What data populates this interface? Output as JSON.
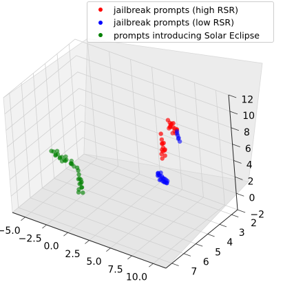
{
  "chart_data": {
    "type": "scatter",
    "projection": "3d",
    "grid": true,
    "legend_position": "top-right",
    "x_ticks": [
      "−5.0",
      "−2.5",
      "0.0",
      "2.5",
      "5.0",
      "7.5",
      "10.0"
    ],
    "y_ticks": [
      "2",
      "3",
      "4",
      "5",
      "6",
      "7"
    ],
    "z_ticks": [
      "−2",
      "0",
      "2",
      "4",
      "6",
      "8",
      "10",
      "12"
    ],
    "xlim": [
      -6.5,
      11.5
    ],
    "ylim": [
      1.5,
      7.5
    ],
    "zlim": [
      -2,
      12
    ],
    "series": [
      {
        "name": "jailbreak prompts (high RSR)",
        "color": "#ff0000",
        "points": [
          [
            8.9,
            4.6,
            11.3
          ],
          [
            9.1,
            4.7,
            11.0
          ],
          [
            9.4,
            4.8,
            11.6
          ],
          [
            9.7,
            4.9,
            11.4
          ],
          [
            10.0,
            5.0,
            11.2
          ],
          [
            10.2,
            5.1,
            11.7
          ],
          [
            9.6,
            5.0,
            11.8
          ],
          [
            9.2,
            4.9,
            11.1
          ],
          [
            9.8,
            4.7,
            10.9
          ],
          [
            10.3,
            5.0,
            11.5
          ],
          [
            8.7,
            4.5,
            10.6
          ],
          [
            9.0,
            4.8,
            11.9
          ],
          [
            10.4,
            5.2,
            11.3
          ],
          [
            9.3,
            4.6,
            11.4
          ],
          [
            9.9,
            5.1,
            11.0
          ],
          [
            7.3,
            4.3,
            8.3
          ],
          [
            7.5,
            4.4,
            8.0
          ],
          [
            7.7,
            4.5,
            7.7
          ],
          [
            7.6,
            4.3,
            7.2
          ],
          [
            7.8,
            4.6,
            7.4
          ],
          [
            7.4,
            4.2,
            6.9
          ],
          [
            7.9,
            4.7,
            8.5
          ],
          [
            7.2,
            4.1,
            7.6
          ],
          [
            7.7,
            4.4,
            6.6
          ],
          [
            7.5,
            4.5,
            6.3
          ],
          [
            8.0,
            4.8,
            7.9
          ],
          [
            7.1,
            4.2,
            8.8
          ],
          [
            7.6,
            4.6,
            7.0
          ]
        ]
      },
      {
        "name": "jailbreak prompts (low RSR)",
        "color": "#0000ff",
        "points": [
          [
            10.8,
            5.3,
            11.3
          ],
          [
            11.0,
            5.4,
            11.1
          ],
          [
            11.2,
            5.5,
            11.4
          ],
          [
            10.6,
            5.2,
            11.6
          ],
          [
            11.3,
            5.5,
            11.0
          ],
          [
            10.9,
            5.4,
            11.7
          ],
          [
            7.4,
            4.8,
            4.6
          ],
          [
            7.8,
            5.0,
            4.9
          ],
          [
            8.2,
            5.1,
            5.1
          ],
          [
            8.6,
            5.3,
            5.3
          ],
          [
            9.0,
            5.5,
            5.6
          ],
          [
            9.3,
            5.6,
            5.8
          ],
          [
            9.6,
            5.7,
            5.9
          ],
          [
            9.8,
            5.8,
            5.7
          ],
          [
            7.1,
            4.7,
            4.3
          ],
          [
            7.6,
            4.9,
            4.2
          ],
          [
            8.4,
            5.2,
            4.7
          ],
          [
            8.9,
            5.4,
            5.0
          ],
          [
            9.5,
            5.6,
            5.4
          ],
          [
            7.9,
            5.0,
            4.5
          ],
          [
            8.7,
            5.3,
            4.9
          ],
          [
            9.2,
            5.5,
            5.2
          ],
          [
            7.3,
            4.8,
            4.8
          ],
          [
            8.1,
            5.1,
            5.5
          ],
          [
            9.9,
            5.8,
            6.0
          ],
          [
            7.0,
            4.6,
            4.4
          ]
        ]
      },
      {
        "name": "prompts introducing Solar Eclipse",
        "color": "#008000",
        "points": [
          [
            -5.2,
            4.9,
            2.9
          ],
          [
            -4.8,
            5.0,
            3.1
          ],
          [
            -4.4,
            5.1,
            3.0
          ],
          [
            -4.0,
            5.2,
            3.3
          ],
          [
            -3.6,
            5.3,
            3.2
          ],
          [
            -3.2,
            5.4,
            3.5
          ],
          [
            -2.8,
            5.5,
            3.4
          ],
          [
            -2.4,
            5.6,
            3.7
          ],
          [
            -2.0,
            5.5,
            3.3
          ],
          [
            -1.6,
            5.7,
            3.6
          ],
          [
            -4.6,
            5.0,
            2.7
          ],
          [
            -3.8,
            5.2,
            2.9
          ],
          [
            -3.0,
            5.3,
            3.0
          ],
          [
            -2.2,
            5.4,
            3.1
          ],
          [
            -1.8,
            5.6,
            3.8
          ],
          [
            -4.2,
            5.1,
            3.5
          ],
          [
            -3.4,
            5.3,
            2.8
          ],
          [
            -2.6,
            5.5,
            3.9
          ],
          [
            -1.4,
            5.7,
            3.4
          ],
          [
            -2.3,
            4.8,
            1.5
          ],
          [
            -2.1,
            4.9,
            1.2
          ],
          [
            -1.9,
            5.0,
            0.9
          ],
          [
            -2.2,
            4.9,
            0.6
          ],
          [
            -1.8,
            5.1,
            0.4
          ],
          [
            -2.0,
            4.8,
            0.2
          ],
          [
            -1.7,
            5.0,
            -0.1
          ],
          [
            -1.9,
            4.9,
            -0.3
          ],
          [
            -2.1,
            5.0,
            -0.5
          ],
          [
            -1.6,
            5.1,
            1.0
          ],
          [
            -2.4,
            4.8,
            1.8
          ],
          [
            -1.5,
            5.2,
            0.7
          ],
          [
            -2.0,
            5.1,
            -0.7
          ],
          [
            -1.8,
            4.9,
            -0.9
          ]
        ]
      }
    ]
  }
}
